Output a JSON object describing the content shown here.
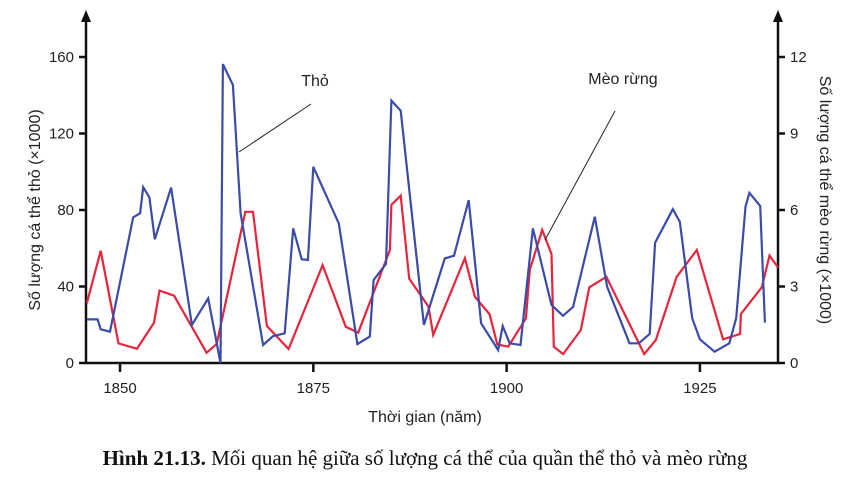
{
  "chart_data": {
    "type": "line",
    "caption_number": "Hình 21.13.",
    "caption_text": "Mối quan hệ giữa số lượng cá thể của quần thể thỏ và mèo rừng",
    "xlabel": "Thời gian (năm)",
    "ylabel_left": "Số lượng cá thể thỏ (×1000)",
    "ylabel_right": "Số lượng cá thể mèo rừng (×1000)",
    "xlim": [
      1845.6,
      1935.1
    ],
    "ylim_left": [
      0,
      160
    ],
    "ylim_right": [
      0,
      12
    ],
    "xticks": [
      "1850",
      "1875",
      "1900",
      "1925"
    ],
    "xtick_values": [
      1850,
      1875,
      1900,
      1925
    ],
    "yticks_left": [
      "0",
      "40",
      "80",
      "120",
      "160"
    ],
    "ytick_left_values": [
      0,
      40,
      80,
      120,
      160
    ],
    "yticks_right": [
      "0",
      "3",
      "6",
      "9",
      "12"
    ],
    "ytick_right_values": [
      0,
      3,
      6,
      9,
      12
    ],
    "grid": false,
    "series": [
      {
        "name": "Thỏ",
        "axis": "left",
        "color": "#3a4ca8",
        "x": [
          1845.7,
          1847.1,
          1847.5,
          1848.7,
          1851.7,
          1852.6,
          1853.0,
          1853.8,
          1854.5,
          1856.6,
          1859.3,
          1861.4,
          1863.0,
          1863.3,
          1864.6,
          1865.6,
          1868.5,
          1869.8,
          1871.3,
          1872.4,
          1873.5,
          1874.3,
          1875.0,
          1878.3,
          1880.7,
          1882.3,
          1882.8,
          1884.4,
          1885.1,
          1886.3,
          1889.3,
          1892.0,
          1893.2,
          1895.1,
          1896.7,
          1898.9,
          1899.5,
          1900.4,
          1901.8,
          1903.4,
          1905.8,
          1907.3,
          1908.6,
          1911.4,
          1913.0,
          1915.9,
          1917.1,
          1918.5,
          1919.2,
          1921.5,
          1922.4,
          1924.0,
          1925.0,
          1926.9,
          1928.8,
          1929.7,
          1930.9,
          1931.4,
          1932.8,
          1933.4
        ],
        "y": [
          22.8,
          22.8,
          17.6,
          16.4,
          76.2,
          78.3,
          91.9,
          86.6,
          64.7,
          91.7,
          19.9,
          33.8,
          0,
          156.3,
          145.4,
          78.3,
          9.4,
          14.1,
          15.5,
          70.4,
          54.2,
          53.9,
          102.6,
          73.0,
          9.9,
          13.8,
          43.4,
          51.8,
          137.2,
          131.9,
          19.9,
          54.7,
          56.1,
          85.2,
          20.8,
          6.8,
          19.3,
          10.3,
          9.4,
          70.4,
          30.3,
          24.7,
          29.4,
          76.5,
          39.9,
          10.3,
          10.3,
          15.2,
          62.9,
          80.4,
          73.9,
          23.4,
          12.4,
          5.9,
          10.3,
          23.4,
          81.7,
          89.0,
          82.1,
          21.1
        ]
      },
      {
        "name": "Mèo rừng",
        "axis": "right",
        "color": "#e8243c",
        "x": [
          1845.7,
          1847.5,
          1849.8,
          1852.2,
          1854.4,
          1855.1,
          1857.0,
          1861.2,
          1862.5,
          1866.2,
          1867.2,
          1869.0,
          1871.8,
          1876.2,
          1879.2,
          1880.8,
          1884.9,
          1885.1,
          1886.3,
          1887.4,
          1889.9,
          1890.5,
          1894.6,
          1895.9,
          1897.8,
          1898.8,
          1900.2,
          1902.5,
          1903.0,
          1904.6,
          1905.8,
          1906.1,
          1907.3,
          1909.6,
          1910.7,
          1912.9,
          1917.8,
          1919.3,
          1922.0,
          1924.6,
          1928.0,
          1930.2,
          1930.3,
          1933.0,
          1934.0,
          1935.1
        ],
        "y": [
          2.34,
          4.4,
          0.77,
          0.56,
          1.58,
          2.84,
          2.64,
          0.4,
          0.75,
          5.93,
          5.93,
          1.45,
          0.55,
          3.84,
          1.42,
          1.19,
          4.43,
          6.2,
          6.56,
          3.31,
          2.21,
          1.1,
          4.11,
          2.6,
          1.91,
          0.73,
          0.64,
          1.75,
          3.65,
          5.22,
          4.27,
          0.64,
          0.35,
          1.29,
          2.97,
          3.38,
          0.35,
          0.9,
          3.38,
          4.43,
          0.93,
          1.14,
          1.92,
          2.97,
          4.21,
          3.75
        ]
      }
    ],
    "annotations": [
      "Thỏ",
      "Mèo rừng"
    ]
  }
}
